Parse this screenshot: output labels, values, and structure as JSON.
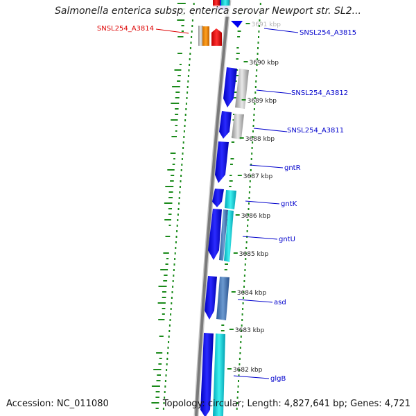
{
  "title": "Salmonella enterica subsp. enterica serovar Newport str. SL2...",
  "footer": {
    "accession": "Accession: NC_011080",
    "summary": "Topology: circular; Length: 4,827,641 bp; Genes: 4,721"
  },
  "colors": {
    "backbone": "#808080",
    "forward_gene": "#0000ee",
    "reverse_gene": "#00c8d0",
    "rna": "#e00000",
    "pseudo": "#b8b8b8",
    "label_normal": "#0000cc",
    "label_highlight": "#dd0000",
    "gc_dots": "#1a8a1a"
  },
  "scale_labels": [
    "3691 kbp",
    "3690 kbp",
    "3689 kbp",
    "3688 kbp",
    "3687 kbp",
    "3686 kbp",
    "3685 kbp",
    "3684 kbp",
    "3683 kbp",
    "3682 kbp"
  ],
  "gene_labels": [
    {
      "name": "SNSL254_A3814",
      "side": "left",
      "highlight": true
    },
    {
      "name": "SNSL254_A3815",
      "side": "right",
      "highlight": false
    },
    {
      "name": "SNSL254_A3812",
      "side": "right",
      "highlight": false
    },
    {
      "name": "SNSL254_A3811",
      "side": "right",
      "highlight": false
    },
    {
      "name": "gntR",
      "side": "right",
      "highlight": false
    },
    {
      "name": "gntK",
      "side": "right",
      "highlight": false
    },
    {
      "name": "gntU",
      "side": "right",
      "highlight": false
    },
    {
      "name": "asd",
      "side": "right",
      "highlight": false
    },
    {
      "name": "glgB",
      "side": "right",
      "highlight": false
    }
  ]
}
